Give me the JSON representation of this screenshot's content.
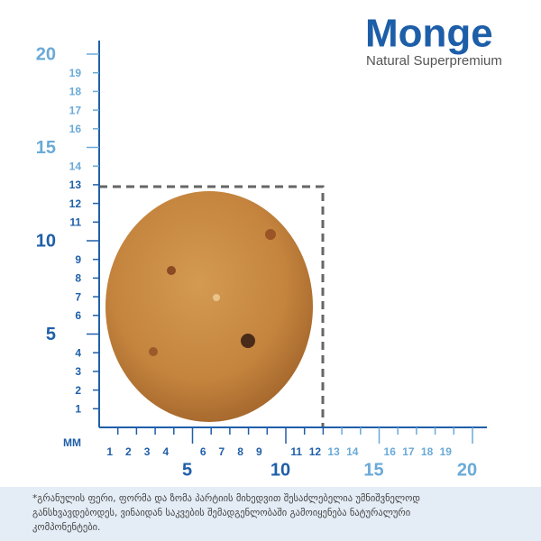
{
  "brand": {
    "name": "Monge",
    "tagline": "Natural Superpremium"
  },
  "ruler": {
    "unit": "MM",
    "y_axis": {
      "minor_dark": [
        1,
        2,
        3,
        4,
        6,
        7,
        8,
        9,
        11,
        12,
        13
      ],
      "minor_light": [
        14,
        16,
        17,
        18,
        19
      ],
      "major_dark": [
        5,
        10
      ],
      "major_light": [
        15,
        20
      ]
    },
    "x_axis": {
      "minor_dark": [
        1,
        2,
        3,
        4,
        6,
        7,
        8,
        9,
        11,
        12
      ],
      "minor_light": [
        13,
        14,
        16,
        17,
        18,
        19
      ],
      "major_dark": [
        5,
        10
      ],
      "major_light": [
        15,
        20
      ]
    }
  },
  "footnote": [
    "*გრანულის ფერი, ფორმა და ზომა პარტიის მიხედვით შესაძლებელია უმნიშვნელოდ",
    "განსხვავდებოდეს,  ვინაიდან საკვების შემადგენლობაში გამოიყენება ნატურალური",
    "კომპონენტები."
  ]
}
